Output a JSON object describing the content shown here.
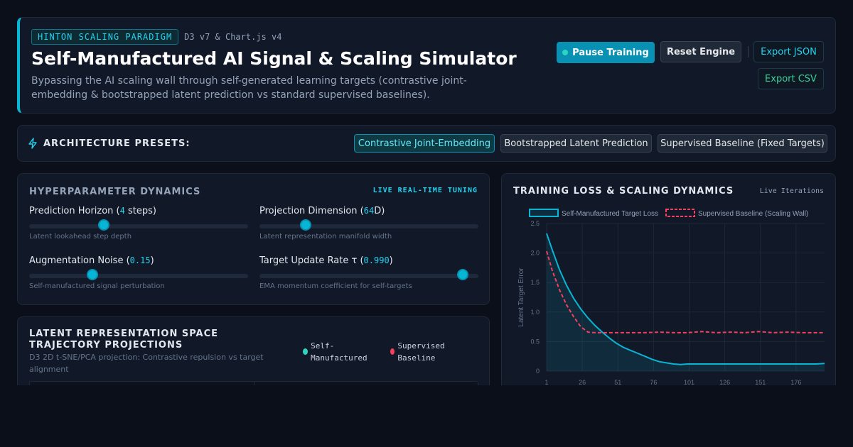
{
  "header": {
    "badge": "HINTON SCALING PARADIGM",
    "version": "D3 v7 & Chart.js v4",
    "title": "Self-Manufactured AI Signal & Scaling Simulator",
    "subtitle": "Bypassing the AI scaling wall through self-generated learning targets (contrastive joint-embedding & bootstrapped latent prediction vs standard supervised baselines).",
    "buttons": {
      "pause": "Pause Training",
      "reset": "Reset Engine",
      "export_json": "Export JSON",
      "export_csv": "Export CSV"
    }
  },
  "presets": {
    "label": "ARCHITECTURE PRESETS:",
    "options": [
      {
        "label": "Contrastive Joint-Embedding",
        "active": true
      },
      {
        "label": "Bootstrapped Latent Prediction",
        "active": false
      },
      {
        "label": "Supervised Baseline (Fixed Targets)",
        "active": false
      }
    ]
  },
  "hyperparameters": {
    "title": "HYPERPARAMETER DYNAMICS",
    "tag": "LIVE REAL-TIME TUNING",
    "params": [
      {
        "name": "Prediction Horizon",
        "prefix": "Prediction Horizon (",
        "value": "4",
        "suffix": " steps)",
        "desc": "Latent lookahead step depth",
        "level": 0.34
      },
      {
        "name": "Projection Dimension",
        "prefix": "Projection Dimension (",
        "value": "64",
        "suffix": "D)",
        "desc": "Latent representation manifold width",
        "level": 0.21
      },
      {
        "name": "Augmentation Noise",
        "prefix": "Augmentation Noise (",
        "value": "0.15",
        "suffix": ")",
        "desc": "Self-manufactured signal perturbation",
        "level": 0.29
      },
      {
        "name": "Target Update Rate",
        "prefix": "Target Update Rate τ (",
        "value": "0.990",
        "suffix": ")",
        "desc": "EMA momentum coefficient for self-targets",
        "level": 0.93
      }
    ]
  },
  "latent": {
    "title": "LATENT REPRESENTATION SPACE TRAJECTORY PROJECTIONS",
    "subtitle": "D3 2D t-SNE/PCA projection: Contrastive repulsion vs target alignment",
    "legend": [
      {
        "label": "Self-Manufactured",
        "color": "#2dd4bf"
      },
      {
        "label": "Supervised Baseline",
        "color": "#f43f5e"
      }
    ]
  },
  "chart_panel": {
    "title": "TRAINING LOSS & SCALING DYNAMICS",
    "tag": "Live Iterations"
  },
  "chart_data": {
    "type": "line",
    "xlabel": "",
    "ylabel": "Latent Target Error",
    "x_ticks": [
      "1",
      "26",
      "51",
      "76",
      "101",
      "126",
      "151",
      "176"
    ],
    "x_range": [
      1,
      196
    ],
    "y_ticks": [
      "0",
      "0.5",
      "1.0",
      "1.5",
      "2.0",
      "2.5"
    ],
    "ylim": [
      0,
      2.5
    ],
    "grid": true,
    "legend_position": "top",
    "series": [
      {
        "name": "Self-Manufactured Target Loss",
        "color": "#06b6d4",
        "style": "solid-filled",
        "x": [
          1,
          5,
          10,
          15,
          20,
          25,
          30,
          35,
          40,
          45,
          50,
          55,
          60,
          65,
          70,
          75,
          80,
          85,
          90,
          95,
          100,
          110,
          120,
          130,
          140,
          150,
          160,
          170,
          180,
          190,
          196
        ],
        "y": [
          2.33,
          2.05,
          1.72,
          1.45,
          1.23,
          1.05,
          0.9,
          0.77,
          0.66,
          0.56,
          0.47,
          0.4,
          0.35,
          0.3,
          0.25,
          0.2,
          0.16,
          0.14,
          0.12,
          0.11,
          0.12,
          0.12,
          0.12,
          0.12,
          0.12,
          0.12,
          0.12,
          0.12,
          0.12,
          0.12,
          0.13
        ]
      },
      {
        "name": "Supervised Baseline (Scaling Wall)",
        "color": "#f43f5e",
        "style": "dashed",
        "x": [
          1,
          5,
          10,
          15,
          20,
          25,
          30,
          35,
          40,
          50,
          60,
          70,
          80,
          90,
          100,
          110,
          120,
          130,
          140,
          150,
          160,
          170,
          180,
          190,
          196
        ],
        "y": [
          2.03,
          1.7,
          1.38,
          1.12,
          0.92,
          0.75,
          0.66,
          0.65,
          0.65,
          0.65,
          0.65,
          0.65,
          0.66,
          0.65,
          0.65,
          0.67,
          0.65,
          0.66,
          0.65,
          0.67,
          0.65,
          0.66,
          0.65,
          0.65,
          0.65
        ]
      }
    ]
  }
}
